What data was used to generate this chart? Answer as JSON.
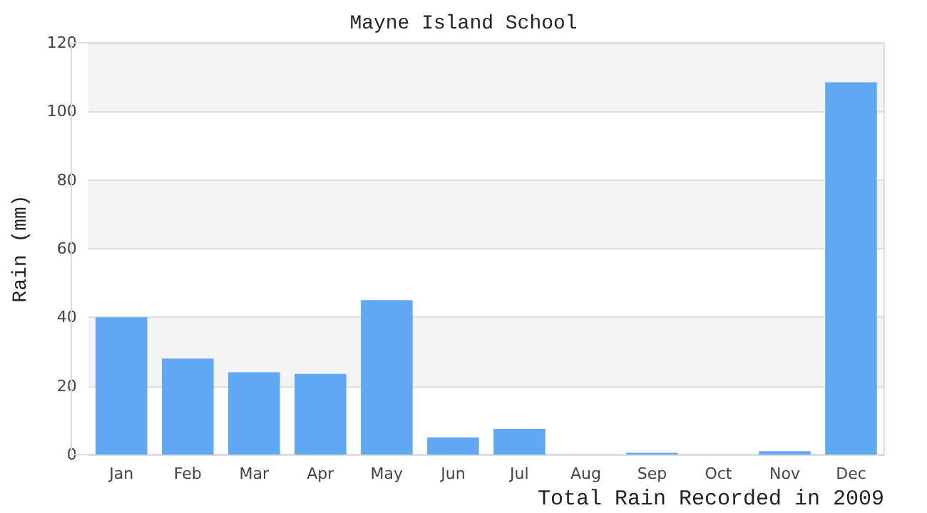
{
  "chart_data": {
    "type": "bar",
    "title": "Mayne Island School",
    "xlabel": "Total Rain Recorded in 2009",
    "ylabel": "Rain (mm)",
    "categories": [
      "Jan",
      "Feb",
      "Mar",
      "Apr",
      "May",
      "Jun",
      "Jul",
      "Aug",
      "Sep",
      "Oct",
      "Nov",
      "Dec"
    ],
    "values": [
      40,
      28,
      24,
      23.5,
      45,
      5,
      7.5,
      0,
      0.5,
      0,
      1,
      108.5
    ],
    "color": "#60a8f4",
    "ylim": [
      0,
      120
    ],
    "yticks": [
      0,
      20,
      40,
      60,
      80,
      100,
      120
    ],
    "grid": "y"
  }
}
